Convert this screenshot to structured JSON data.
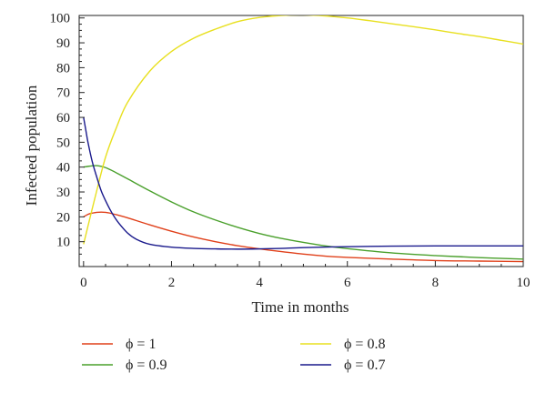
{
  "chart_data": {
    "type": "line",
    "title": "",
    "xlabel": "Time in months",
    "ylabel": "Infected population",
    "xlim": [
      -0.1,
      10
    ],
    "ylim": [
      0,
      101
    ],
    "xticks": [
      0,
      2,
      4,
      6,
      8,
      10
    ],
    "xtick_labels": [
      "0",
      "2",
      "4",
      "6",
      "8",
      "10"
    ],
    "yticks": [
      10,
      20,
      30,
      40,
      50,
      60,
      70,
      80,
      90,
      100
    ],
    "ytick_labels": [
      "10",
      "20",
      "30",
      "40",
      "50",
      "60",
      "70",
      "80",
      "90",
      "100"
    ],
    "grid": false,
    "legend_position": "bottom",
    "series": [
      {
        "name": "ϕ = 1",
        "color": "#e0401a",
        "x": [
          0,
          0.1,
          0.2,
          0.3,
          0.4,
          0.5,
          0.6,
          0.8,
          1,
          1.5,
          2,
          2.5,
          3,
          3.5,
          4,
          4.5,
          5,
          5.5,
          6,
          7,
          8,
          9,
          10
        ],
        "y": [
          20,
          21,
          21.5,
          21.8,
          21.9,
          21.8,
          21.5,
          20.6,
          19.6,
          16.8,
          14.2,
          11.9,
          10,
          8.4,
          7.1,
          6,
          5,
          4.2,
          3.7,
          3,
          2.4,
          2.2,
          2
        ]
      },
      {
        "name": "ϕ = 0.9",
        "color": "#4aa02c",
        "x": [
          0,
          0.1,
          0.2,
          0.3,
          0.4,
          0.5,
          0.6,
          0.8,
          1,
          1.5,
          2,
          2.5,
          3,
          3.5,
          4,
          4.5,
          5,
          5.5,
          6,
          7,
          8,
          9,
          10
        ],
        "y": [
          40,
          40.3,
          40.5,
          40.6,
          40.3,
          39.8,
          39,
          37.2,
          35.3,
          30.5,
          26,
          22,
          18.7,
          15.8,
          13.3,
          11.3,
          9.7,
          8.3,
          7.2,
          5.5,
          4.4,
          3.6,
          3
        ]
      },
      {
        "name": "ϕ = 0.8",
        "color": "#e8e020",
        "x": [
          0,
          0.25,
          0.5,
          0.75,
          1,
          1.5,
          2,
          2.5,
          3,
          3.5,
          4,
          4.5,
          5,
          5.5,
          6,
          6.5,
          7,
          7.5,
          8,
          8.5,
          9,
          9.5,
          10
        ],
        "y": [
          9,
          27,
          44,
          56,
          66,
          78.5,
          86.5,
          91.8,
          95.5,
          98.5,
          100.2,
          101,
          101.2,
          100.8,
          100,
          98.9,
          97.7,
          96.5,
          95.2,
          93.8,
          92.5,
          91,
          89.5
        ]
      },
      {
        "name": "ϕ = 0.7",
        "color": "#1a1a8c",
        "x": [
          0,
          0.05,
          0.1,
          0.2,
          0.3,
          0.4,
          0.5,
          0.6,
          0.7,
          0.8,
          1,
          1.2,
          1.5,
          2,
          2.5,
          3,
          3.5,
          4,
          4.5,
          5,
          6,
          7,
          8,
          9,
          10
        ],
        "y": [
          60,
          55,
          50,
          42,
          36,
          30.5,
          26.5,
          23,
          20,
          17.5,
          13.5,
          11,
          9,
          7.8,
          7.3,
          7.1,
          7,
          7.1,
          7.3,
          7.6,
          8,
          8.2,
          8.3,
          8.3,
          8.3
        ]
      }
    ]
  }
}
